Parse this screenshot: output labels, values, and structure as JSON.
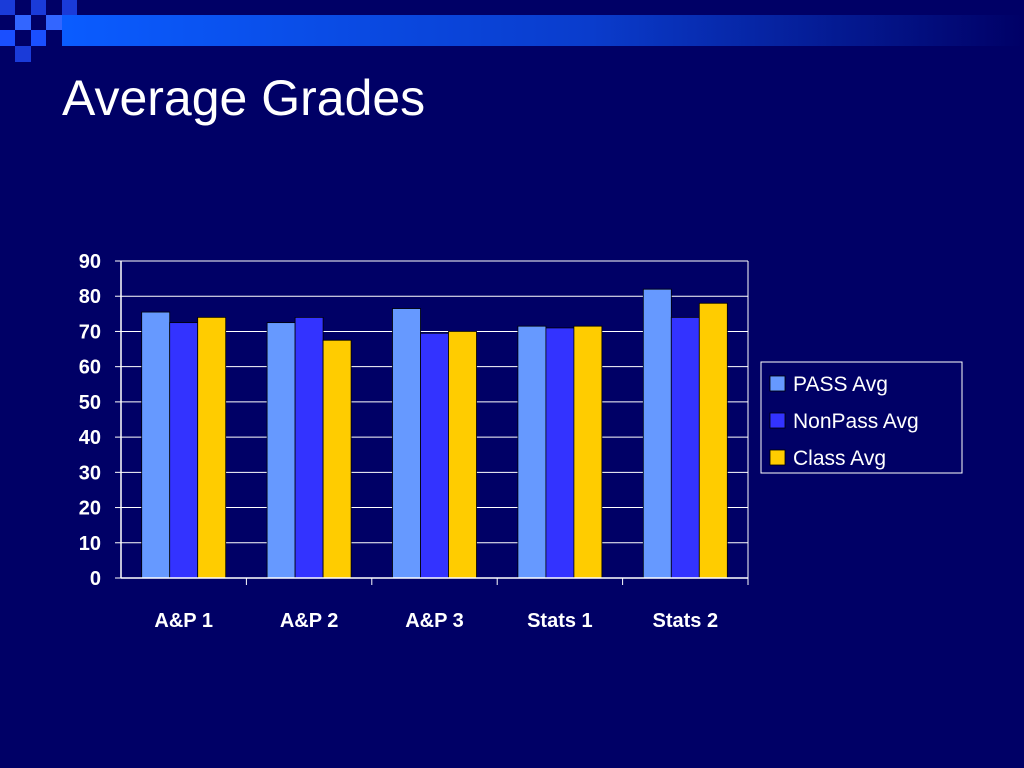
{
  "slide": {
    "title": "Average Grades"
  },
  "colors": {
    "background": "#000066",
    "band_gradient_start": "#0a5cff",
    "band_gradient_end": "#000066",
    "squares": [
      "#1a4fff",
      "#1a3bd9",
      "#3366ff"
    ]
  },
  "chart_data": {
    "type": "bar",
    "title": "",
    "xlabel": "",
    "ylabel": "",
    "categories": [
      "A&P 1",
      "A&P 2",
      "A&P 3",
      "Stats 1",
      "Stats 2"
    ],
    "series": [
      {
        "name": "PASS Avg",
        "color": "#6699ff",
        "values": [
          75.5,
          72.5,
          76.5,
          71.5,
          82
        ]
      },
      {
        "name": "NonPass Avg",
        "color": "#3333ff",
        "values": [
          72.5,
          74,
          69.5,
          71,
          74
        ]
      },
      {
        "name": "Class Avg",
        "color": "#ffcc00",
        "values": [
          74,
          67.5,
          70,
          71.5,
          78
        ]
      }
    ],
    "ylim": [
      0,
      90
    ],
    "yticks": [
      0,
      10,
      20,
      30,
      40,
      50,
      60,
      70,
      80,
      90
    ],
    "grid": true,
    "legend_position": "right"
  }
}
